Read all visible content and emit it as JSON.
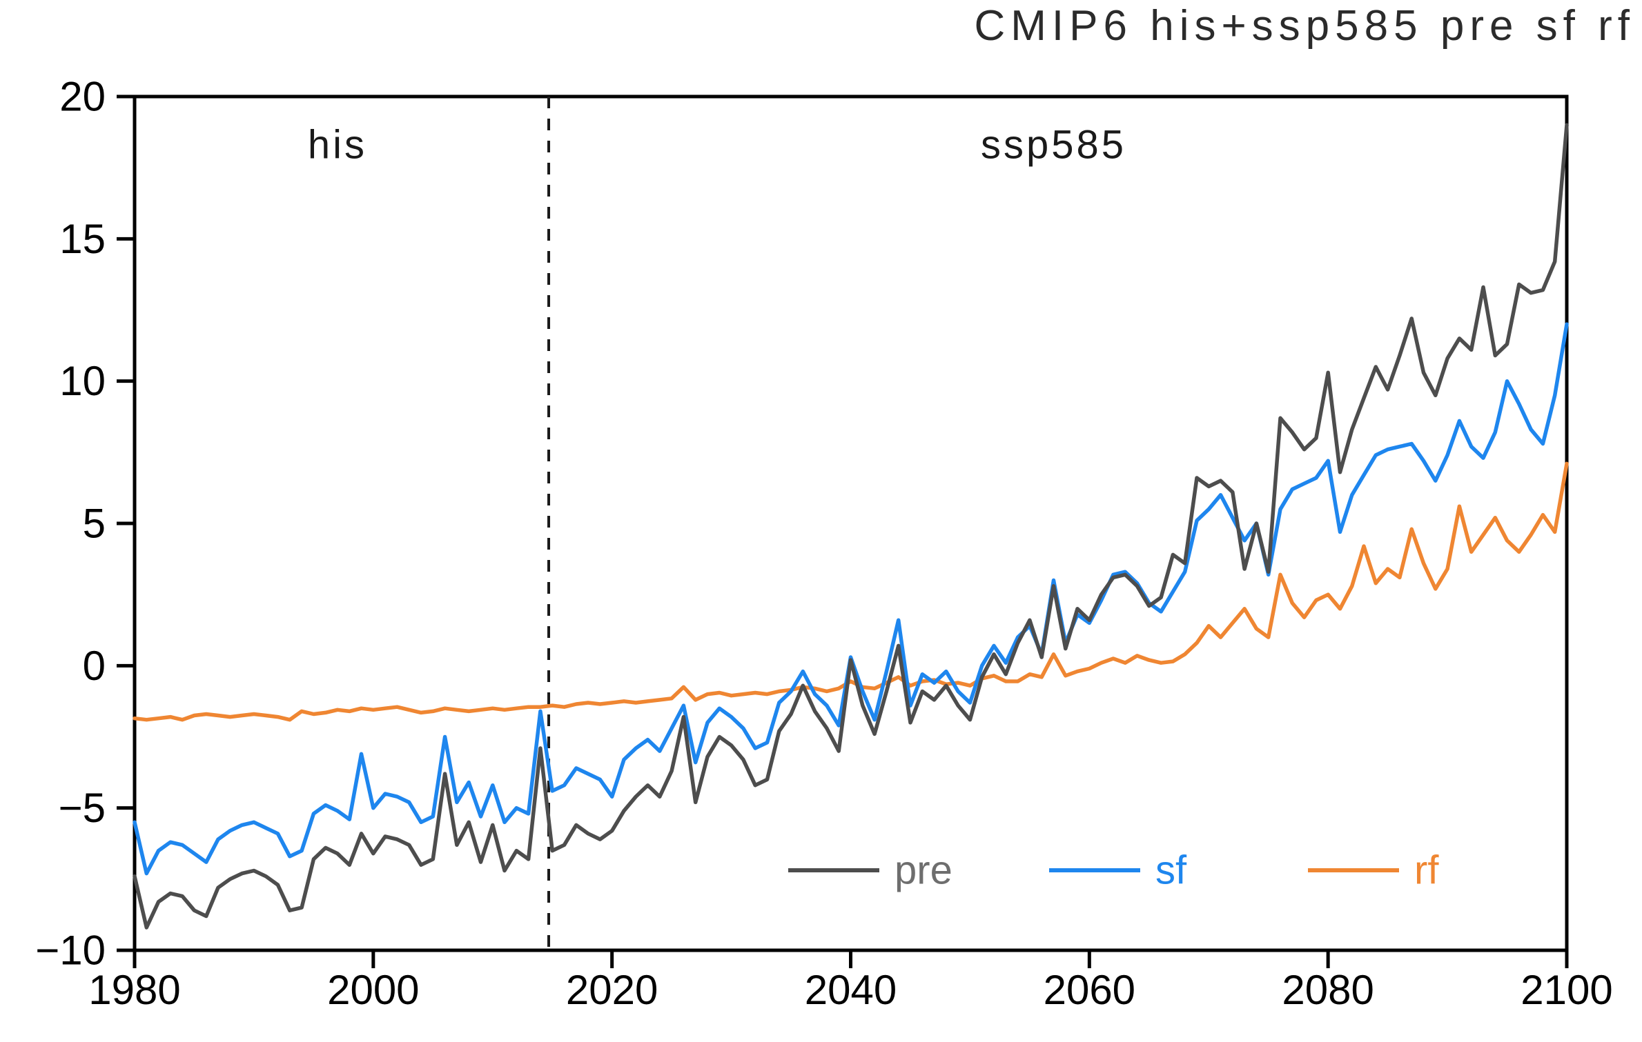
{
  "title": "CMIP6 his+ssp585 pre sf rf",
  "chart_data": {
    "type": "line",
    "title": "CMIP6 his+ssp585 pre sf rf",
    "xlabel": "",
    "ylabel": "",
    "grid": false,
    "frame": true,
    "axis_color": "#000000",
    "x_range": [
      1980,
      2100
    ],
    "y_range": [
      -10,
      20
    ],
    "x_ticks": [
      1980,
      2000,
      2020,
      2040,
      2060,
      2080,
      2100
    ],
    "x_tick_labels": [
      "1980",
      "2000",
      "2020",
      "2040",
      "2060",
      "2080",
      "2100"
    ],
    "y_ticks": [
      20,
      15,
      10,
      5,
      0,
      -5,
      -10
    ],
    "y_tick_labels": [
      "20",
      "15",
      "10",
      "5",
      "0",
      "−5",
      "−10"
    ],
    "x": {
      "start": 1980,
      "end": 2100,
      "step": 1
    },
    "divider": {
      "style": "dashed",
      "x_year": 2014.7,
      "color": "#1a1a1a"
    },
    "annotations": [
      {
        "text": "his",
        "x_year": 1997,
        "y_value": 18.3
      },
      {
        "text": "ssp585",
        "x_year": 2057,
        "y_value": 18.3
      }
    ],
    "legend": {
      "position": "inside-bottom",
      "entries": [
        {
          "label": "pre",
          "color": "#4d4d4d",
          "text_color": "#6e6e6e"
        },
        {
          "label": "sf",
          "color": "#1e86ee",
          "text_color": "#1e86ee"
        },
        {
          "label": "rf",
          "color": "#ef8632",
          "text_color": "#ef8632"
        }
      ]
    },
    "series": [
      {
        "name": "pre",
        "color": "#4d4d4d",
        "values": [
          -7.4,
          -9.2,
          -8.3,
          -8.0,
          -8.1,
          -8.6,
          -8.8,
          -7.8,
          -7.5,
          -7.3,
          -7.2,
          -7.4,
          -7.7,
          -8.6,
          -8.5,
          -6.8,
          -6.4,
          -6.6,
          -7.0,
          -5.9,
          -6.6,
          -6.0,
          -6.1,
          -6.3,
          -7.0,
          -6.8,
          -3.8,
          -6.3,
          -5.5,
          -6.9,
          -5.6,
          -7.2,
          -6.5,
          -6.8,
          -2.9,
          -6.5,
          -6.3,
          -5.6,
          -5.9,
          -6.1,
          -5.8,
          -5.1,
          -4.6,
          -4.2,
          -4.6,
          -3.7,
          -1.8,
          -4.8,
          -3.2,
          -2.5,
          -2.8,
          -3.3,
          -4.2,
          -4.0,
          -2.3,
          -1.7,
          -0.7,
          -1.6,
          -2.2,
          -3.0,
          0.2,
          -1.4,
          -2.4,
          -0.9,
          0.7,
          -2.0,
          -0.9,
          -1.2,
          -0.7,
          -1.4,
          -1.9,
          -0.4,
          0.4,
          -0.3,
          0.8,
          1.6,
          0.3,
          2.8,
          0.6,
          2.0,
          1.6,
          2.5,
          3.1,
          3.2,
          2.8,
          2.1,
          2.4,
          3.9,
          3.6,
          6.6,
          6.3,
          6.5,
          6.1,
          3.4,
          5.0,
          3.3,
          8.7,
          8.2,
          7.6,
          8.0,
          10.3,
          6.8,
          8.3,
          9.4,
          10.5,
          9.7,
          10.9,
          12.2,
          10.3,
          9.5,
          10.8,
          11.5,
          11.1,
          13.3,
          10.9,
          11.3,
          13.4,
          13.1,
          13.2,
          14.2,
          19.0
        ]
      },
      {
        "name": "sf",
        "color": "#1e86ee",
        "values": [
          -5.5,
          -7.3,
          -6.5,
          -6.2,
          -6.3,
          -6.6,
          -6.9,
          -6.1,
          -5.8,
          -5.6,
          -5.5,
          -5.7,
          -5.9,
          -6.7,
          -6.5,
          -5.2,
          -4.9,
          -5.1,
          -5.4,
          -3.1,
          -5.0,
          -4.5,
          -4.6,
          -4.8,
          -5.5,
          -5.3,
          -2.5,
          -4.8,
          -4.1,
          -5.3,
          -4.2,
          -5.5,
          -5.0,
          -5.2,
          -1.6,
          -4.4,
          -4.2,
          -3.6,
          -3.8,
          -4.0,
          -4.6,
          -3.3,
          -2.9,
          -2.6,
          -3.0,
          -2.2,
          -1.4,
          -3.4,
          -2.0,
          -1.5,
          -1.8,
          -2.2,
          -2.9,
          -2.7,
          -1.3,
          -0.9,
          -0.2,
          -1.0,
          -1.4,
          -2.1,
          0.3,
          -0.9,
          -1.9,
          -0.2,
          1.6,
          -1.4,
          -0.3,
          -0.6,
          -0.2,
          -0.9,
          -1.3,
          0.0,
          0.7,
          0.1,
          1.0,
          1.4,
          0.4,
          3.0,
          0.8,
          1.8,
          1.5,
          2.3,
          3.2,
          3.3,
          2.9,
          2.2,
          1.9,
          2.6,
          3.3,
          5.1,
          5.5,
          6.0,
          5.2,
          4.4,
          5.0,
          3.2,
          5.5,
          6.2,
          6.4,
          6.6,
          7.2,
          4.7,
          6.0,
          6.7,
          7.4,
          7.6,
          7.7,
          7.8,
          7.2,
          6.5,
          7.4,
          8.6,
          7.7,
          7.3,
          8.2,
          10.0,
          9.2,
          8.3,
          7.8,
          9.5,
          12.0
        ]
      },
      {
        "name": "rf",
        "color": "#ef8632",
        "values": [
          -1.85,
          -1.9,
          -1.85,
          -1.8,
          -1.9,
          -1.75,
          -1.7,
          -1.75,
          -1.8,
          -1.75,
          -1.7,
          -1.75,
          -1.8,
          -1.9,
          -1.6,
          -1.7,
          -1.65,
          -1.55,
          -1.6,
          -1.5,
          -1.55,
          -1.5,
          -1.45,
          -1.55,
          -1.65,
          -1.6,
          -1.5,
          -1.55,
          -1.6,
          -1.55,
          -1.5,
          -1.55,
          -1.5,
          -1.45,
          -1.45,
          -1.4,
          -1.45,
          -1.35,
          -1.3,
          -1.35,
          -1.3,
          -1.25,
          -1.3,
          -1.25,
          -1.2,
          -1.15,
          -0.75,
          -1.2,
          -1.0,
          -0.95,
          -1.05,
          -1.0,
          -0.95,
          -1.0,
          -0.9,
          -0.85,
          -0.75,
          -0.8,
          -0.9,
          -0.8,
          -0.55,
          -0.75,
          -0.8,
          -0.6,
          -0.4,
          -0.7,
          -0.55,
          -0.5,
          -0.65,
          -0.6,
          -0.7,
          -0.45,
          -0.35,
          -0.55,
          -0.55,
          -0.3,
          -0.4,
          0.4,
          -0.35,
          -0.2,
          -0.1,
          0.1,
          0.25,
          0.1,
          0.35,
          0.2,
          0.1,
          0.15,
          0.4,
          0.8,
          1.4,
          1.0,
          1.5,
          2.0,
          1.3,
          1.0,
          3.2,
          2.2,
          1.7,
          2.3,
          2.5,
          2.0,
          2.8,
          4.2,
          2.9,
          3.4,
          3.1,
          4.8,
          3.6,
          2.7,
          3.4,
          5.6,
          4.0,
          4.6,
          5.2,
          4.4,
          4.0,
          4.6,
          5.3,
          4.7,
          7.1
        ]
      }
    ]
  }
}
